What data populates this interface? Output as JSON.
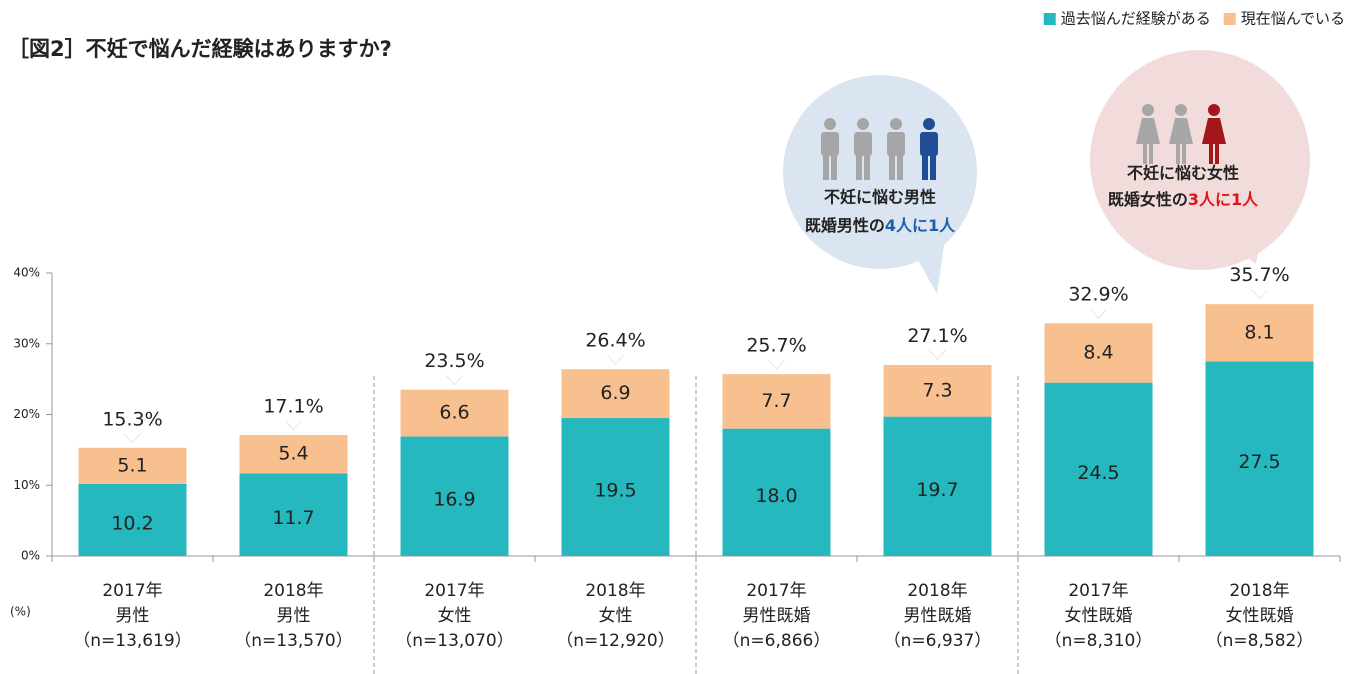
{
  "chart_data": {
    "type": "stacked-bar",
    "title": "［図2］不妊で悩んだ経験はありますか?",
    "y_unit": "(%)",
    "categories": [
      [
        "2017年",
        "男性",
        "（n=13,619）"
      ],
      [
        "2018年",
        "男性",
        "（n=13,570）"
      ],
      [
        "2017年",
        "女性",
        "（n=13,070）"
      ],
      [
        "2018年",
        "女性",
        "（n=12,920）"
      ],
      [
        "2017年",
        "男性既婚",
        "（n=6,866）"
      ],
      [
        "2018年",
        "男性既婚",
        "（n=6,937）"
      ],
      [
        "2017年",
        "女性既婚",
        "（n=8,310）"
      ],
      [
        "2018年",
        "女性既婚",
        "（n=8,582）"
      ]
    ],
    "series": [
      {
        "name": "過去悩んだ経験がある",
        "color": "#26b8bf",
        "values": [
          10.2,
          11.7,
          16.9,
          19.5,
          18.0,
          19.7,
          24.5,
          27.5
        ],
        "value_labels": [
          "10.2",
          "11.7",
          "16.9",
          "19.5",
          "18.0",
          "19.7",
          "24.5",
          "27.5"
        ]
      },
      {
        "name": "現在悩んでいる",
        "color": "#f8c08f",
        "values": [
          5.1,
          5.4,
          6.6,
          6.9,
          7.7,
          7.3,
          8.4,
          8.1
        ]
      }
    ],
    "totals": [
      15.3,
      17.1,
      23.5,
      26.4,
      25.7,
      27.1,
      32.9,
      35.7
    ],
    "total_labels": [
      "15.3%",
      "17.1%",
      "23.5%",
      "26.4%",
      "25.7%",
      "27.1%",
      "32.9%",
      "35.7%"
    ],
    "ylim": [
      0,
      40
    ],
    "yticks": [
      {
        "value": 0,
        "label": "0%"
      },
      {
        "value": 10,
        "label": "10%"
      },
      {
        "value": 20,
        "label": "20%"
      },
      {
        "value": 30,
        "label": "30%"
      },
      {
        "value": 40,
        "label": "40%"
      }
    ],
    "legend": "top-right",
    "callouts": [
      {
        "line1": "不妊に悩む男性",
        "line2": "既婚男性の",
        "highlight": "4人に1人",
        "color": "#1f5ea8"
      },
      {
        "line1": "不妊に悩む女性",
        "line2": "既婚女性の",
        "highlight": "3人に1人",
        "color": "#e0121a"
      }
    ]
  }
}
